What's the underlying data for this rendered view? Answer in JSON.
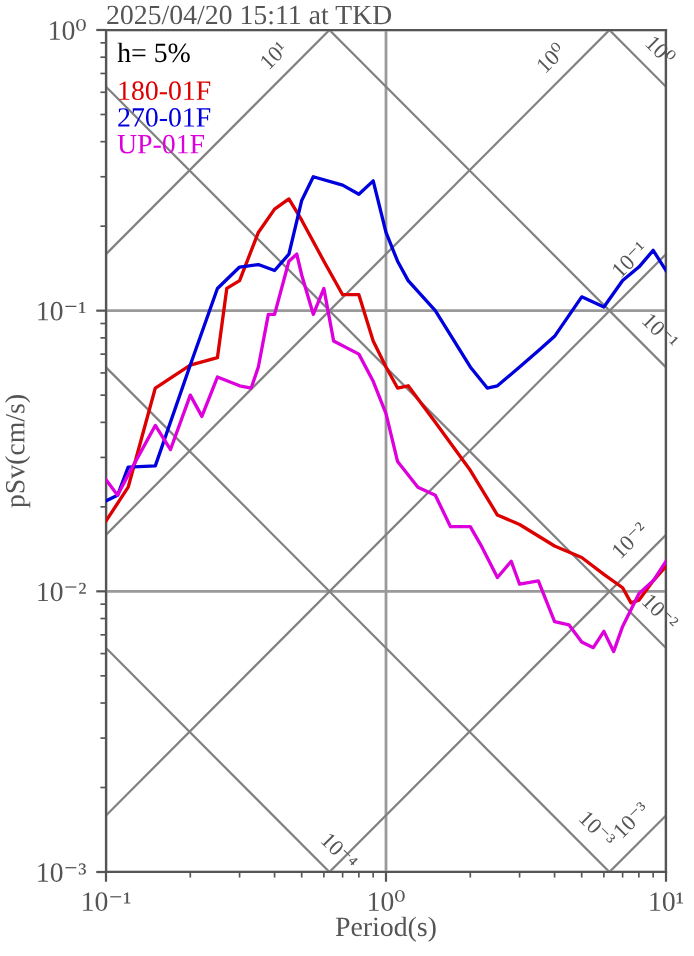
{
  "chart_data": {
    "type": "line",
    "title": "2025/04/20 15:11 at TKD",
    "xlabel": "Period(s)",
    "ylabel": "pSv(cm/s)",
    "log": "xy",
    "grid": true,
    "legend": "top left",
    "marker": "none",
    "line_style": "solid",
    "xlim": [
      0.1,
      10
    ],
    "ylim": [
      0.001,
      1
    ],
    "xticks": [
      {
        "value": 0.1,
        "label": "10⁻¹"
      },
      {
        "value": 1,
        "label": "10⁰"
      },
      {
        "value": 10,
        "label": "10¹"
      }
    ],
    "yticks": [
      {
        "value": 0.001,
        "label": "10⁻³"
      },
      {
        "value": 0.01,
        "label": "10⁻²"
      },
      {
        "value": 0.1,
        "label": "10⁻¹"
      },
      {
        "value": 1,
        "label": "10⁰"
      }
    ],
    "series": [
      {
        "name": "180-01F",
        "color": "#dd0000",
        "x": [
          0.1,
          0.12,
          0.15,
          0.2,
          0.25,
          0.27,
          0.3,
          0.35,
          0.4,
          0.45,
          0.5,
          0.6,
          0.7,
          0.8,
          0.9,
          1.0,
          1.1,
          1.2,
          1.5,
          2,
          2.5,
          3,
          4,
          5,
          6,
          7,
          7.5,
          8,
          9,
          10
        ],
        "values": [
          0.0178,
          0.0235,
          0.053,
          0.064,
          0.068,
          0.12,
          0.128,
          0.19,
          0.23,
          0.25,
          0.21,
          0.15,
          0.114,
          0.114,
          0.078,
          0.063,
          0.053,
          0.054,
          0.04,
          0.027,
          0.0187,
          0.0173,
          0.0145,
          0.0132,
          0.0115,
          0.0103,
          0.0091,
          0.0093,
          0.0109,
          0.0123
        ]
      },
      {
        "name": "270-01F",
        "color": "#0000dd",
        "x": [
          0.1,
          0.11,
          0.12,
          0.15,
          0.2,
          0.25,
          0.3,
          0.35,
          0.4,
          0.45,
          0.5,
          0.55,
          0.7,
          0.8,
          0.9,
          1.0,
          1.1,
          1.2,
          1.5,
          2,
          2.3,
          2.5,
          3,
          3.5,
          4,
          5,
          6,
          7,
          8,
          9,
          10
        ],
        "values": [
          0.021,
          0.022,
          0.0277,
          0.028,
          0.064,
          0.12,
          0.143,
          0.146,
          0.139,
          0.159,
          0.247,
          0.3,
          0.28,
          0.26,
          0.29,
          0.19,
          0.15,
          0.128,
          0.1,
          0.063,
          0.053,
          0.054,
          0.063,
          0.072,
          0.081,
          0.112,
          0.103,
          0.128,
          0.143,
          0.164,
          0.139
        ]
      },
      {
        "name": "UP-01F",
        "color": "#dd00dd",
        "x": [
          0.1,
          0.11,
          0.12,
          0.15,
          0.17,
          0.2,
          0.22,
          0.25,
          0.3,
          0.33,
          0.35,
          0.38,
          0.4,
          0.45,
          0.48,
          0.5,
          0.55,
          0.6,
          0.65,
          0.8,
          0.9,
          1.0,
          1.1,
          1.3,
          1.5,
          1.7,
          2,
          2.2,
          2.5,
          2.8,
          3,
          3.5,
          4,
          4.5,
          5,
          5.5,
          6,
          6.5,
          7,
          8,
          9,
          10
        ],
        "values": [
          0.025,
          0.022,
          0.026,
          0.039,
          0.032,
          0.05,
          0.042,
          0.058,
          0.054,
          0.053,
          0.063,
          0.097,
          0.097,
          0.15,
          0.159,
          0.134,
          0.097,
          0.12,
          0.078,
          0.07,
          0.056,
          0.043,
          0.029,
          0.0235,
          0.022,
          0.017,
          0.017,
          0.0144,
          0.0112,
          0.0128,
          0.0106,
          0.0109,
          0.0078,
          0.0076,
          0.0066,
          0.0063,
          0.0072,
          0.0061,
          0.0075,
          0.0098,
          0.0109,
          0.0128
        ]
      },
      {
        "color": "#808080",
        "x": [
          0.1,
          0.628
        ],
        "values": [
          0.159,
          1
        ]
      },
      {
        "color": "#808080",
        "x": [
          0.1,
          6.28
        ],
        "values": [
          0.0159,
          1
        ]
      },
      {
        "color": "#808080",
        "x": [
          0.1,
          10
        ],
        "values": [
          0.00159,
          0.159
        ]
      },
      {
        "color": "#808080",
        "x": [
          0.628,
          10
        ],
        "values": [
          0.001,
          0.0159
        ]
      },
      {
        "color": "#808080",
        "x": [
          6.28,
          10
        ],
        "values": [
          0.001,
          0.00159
        ]
      },
      {
        "color": "#808080",
        "x": [
          6.28,
          10
        ],
        "values": [
          1,
          0.628
        ]
      },
      {
        "color": "#808080",
        "x": [
          0.628,
          10
        ],
        "values": [
          1,
          0.0628
        ]
      },
      {
        "color": "#808080",
        "x": [
          0.1,
          10
        ],
        "values": [
          0.628,
          0.00628
        ]
      },
      {
        "color": "#808080",
        "x": [
          0.1,
          6.28
        ],
        "values": [
          0.0628,
          0.001
        ]
      },
      {
        "color": "#808080",
        "x": [
          0.1,
          0.628
        ],
        "values": [
          0.00628,
          0.001
        ]
      }
    ],
    "annotations": [
      "h= 5%",
      {
        "text": "10¹",
        "x": 0.45,
        "y": 0.716
      },
      {
        "text": "10⁰",
        "x": 4.4,
        "y": 0.7
      },
      {
        "text": "10⁰",
        "x": 8.4,
        "y": 0.748
      },
      {
        "text": "10⁻¹",
        "x": 8.4,
        "y": 0.134
      },
      {
        "text": "10⁻¹",
        "x": 8.4,
        "y": 0.0748
      },
      {
        "text": "10⁻²",
        "x": 8.4,
        "y": 0.0134
      },
      {
        "text": "10⁻²",
        "x": 8.4,
        "y": 0.00748
      },
      {
        "text": "10⁻³",
        "x": 8.5,
        "y": 0.00135
      },
      {
        "text": "10⁻³",
        "x": 5.0,
        "y": 0.00126
      },
      {
        "text": "10⁻⁴",
        "x": 0.6,
        "y": 0.00105
      }
    ]
  }
}
